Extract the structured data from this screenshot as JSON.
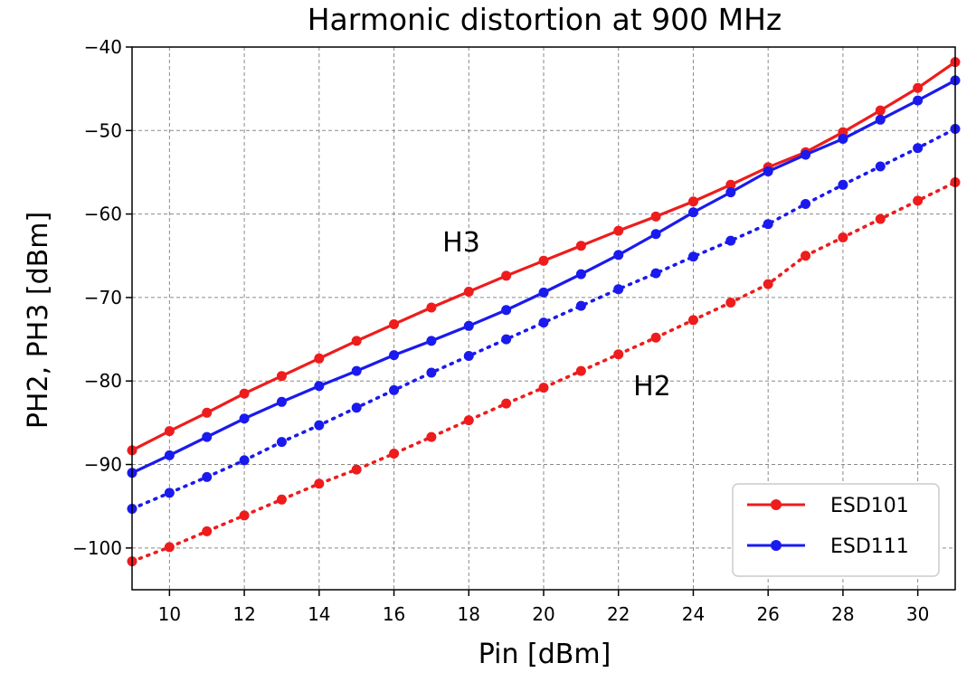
{
  "chart_data": {
    "type": "line",
    "title": "Harmonic distortion at 900 MHz",
    "xlabel": "Pin [dBm]",
    "ylabel": "PH2, PH3 [dBm]",
    "xlim": [
      9,
      31
    ],
    "ylim": [
      -105,
      -40
    ],
    "x_ticks": [
      10,
      12,
      14,
      16,
      18,
      20,
      22,
      24,
      26,
      28,
      30
    ],
    "y_ticks": [
      -100,
      -90,
      -80,
      -70,
      -60,
      -50,
      -40
    ],
    "grid": true,
    "legend_position": "bottom-right",
    "legend": [
      {
        "name": "ESD101",
        "color": "#ee1c1c"
      },
      {
        "name": "ESD111",
        "color": "#1a1aee"
      }
    ],
    "annotations": [
      {
        "text": "H3",
        "x": 17.8,
        "y": -64.5
      },
      {
        "text": "H2",
        "x": 22.9,
        "y": -81.7
      }
    ],
    "x": [
      9,
      10,
      11,
      12,
      13,
      14,
      15,
      16,
      17,
      18,
      19,
      20,
      21,
      22,
      23,
      24,
      25,
      26,
      27,
      28,
      29,
      30,
      31
    ],
    "series": [
      {
        "group": "ESD101",
        "harmonic": "H3",
        "color": "#ee1c1c",
        "style": "solid",
        "values": [
          -88.3,
          -86.0,
          -83.8,
          -81.5,
          -79.4,
          -77.3,
          -75.2,
          -73.2,
          -71.2,
          -69.3,
          -67.4,
          -65.6,
          -63.8,
          -62.0,
          -60.3,
          -58.5,
          -56.5,
          -54.4,
          -52.6,
          -50.2,
          -47.6,
          -44.9,
          -41.8
        ]
      },
      {
        "group": "ESD111",
        "harmonic": "H3",
        "color": "#1a1aee",
        "style": "solid",
        "values": [
          -91.0,
          -88.9,
          -86.7,
          -84.5,
          -82.5,
          -80.6,
          -78.8,
          -76.9,
          -75.2,
          -73.4,
          -71.5,
          -69.4,
          -67.2,
          -64.9,
          -62.4,
          -59.8,
          -57.4,
          -54.9,
          -52.9,
          -51.0,
          -48.7,
          -46.4,
          -44.0
        ]
      },
      {
        "group": "ESD111",
        "harmonic": "H2",
        "color": "#1a1aee",
        "style": "dotted",
        "values": [
          -95.3,
          -93.4,
          -91.5,
          -89.5,
          -87.3,
          -85.3,
          -83.2,
          -81.1,
          -79.0,
          -77.0,
          -75.0,
          -73.0,
          -71.0,
          -69.0,
          -67.1,
          -65.1,
          -63.2,
          -61.2,
          -58.8,
          -56.5,
          -54.3,
          -52.1,
          -49.8
        ]
      },
      {
        "group": "ESD101",
        "harmonic": "H2",
        "color": "#ee1c1c",
        "style": "dotted",
        "values": [
          -101.6,
          -99.9,
          -98.0,
          -96.1,
          -94.2,
          -92.3,
          -90.6,
          -88.7,
          -86.7,
          -84.7,
          -82.7,
          -80.8,
          -78.8,
          -76.8,
          -74.8,
          -72.7,
          -70.6,
          -68.4,
          -65.0,
          -62.8,
          -60.6,
          -58.4,
          -56.2
        ]
      }
    ]
  }
}
